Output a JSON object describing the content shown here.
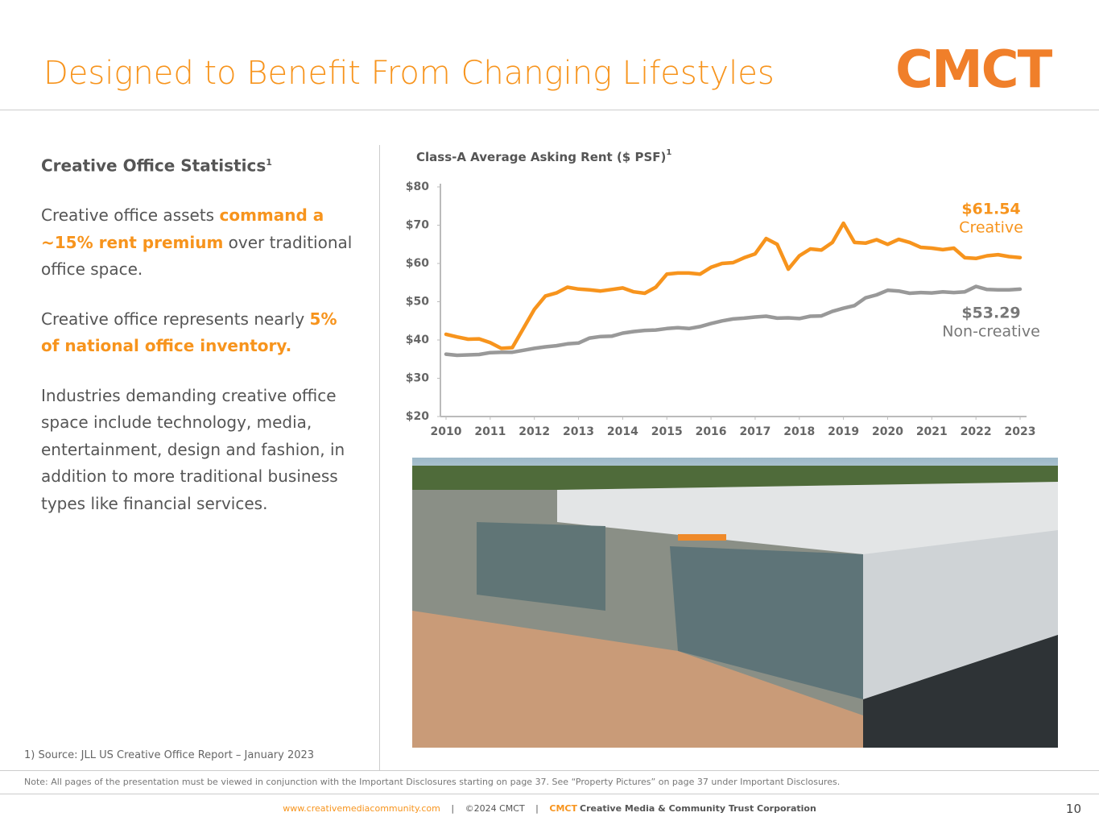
{
  "header": {
    "title": "Designed to Benefit From Changing Lifestyles",
    "logo": "CMCT"
  },
  "left": {
    "heading": "Creative Office Statistics",
    "heading_note": "1",
    "paragraphs": [
      [
        {
          "text": "Creative office assets "
        },
        {
          "text": "command a ~15% rent premium",
          "emphasis": true
        },
        {
          "text": " over traditional office space."
        }
      ],
      [
        {
          "text": "Creative office represents nearly "
        },
        {
          "text": "5% of national office inventory.",
          "emphasis": true
        }
      ],
      [
        {
          "text": "Industries demanding creative office space include technology, media, entertainment, design and fashion, in addition to more traditional business types like financial services."
        }
      ]
    ],
    "footnote": "1) Source: JLL US Creative Office Report – January 2023"
  },
  "chart_data": {
    "type": "line",
    "title": "Class-A Average Asking Rent ($ PSF)",
    "title_note": "1",
    "x": [
      2010,
      2010.25,
      2010.5,
      2010.75,
      2011,
      2011.25,
      2011.5,
      2011.75,
      2012,
      2012.25,
      2012.5,
      2012.75,
      2013,
      2013.25,
      2013.5,
      2013.75,
      2014,
      2014.25,
      2014.5,
      2014.75,
      2015,
      2015.25,
      2015.5,
      2015.75,
      2016,
      2016.25,
      2016.5,
      2016.75,
      2017,
      2017.25,
      2017.5,
      2017.75,
      2018,
      2018.25,
      2018.5,
      2018.75,
      2019,
      2019.25,
      2019.5,
      2019.75,
      2020,
      2020.25,
      2020.5,
      2020.75,
      2021,
      2021.25,
      2021.5,
      2021.75,
      2022,
      2022.25,
      2022.5,
      2022.75,
      2023
    ],
    "xlim": [
      2010,
      2023
    ],
    "xticks": [
      2010,
      2011,
      2012,
      2013,
      2014,
      2015,
      2016,
      2017,
      2018,
      2019,
      2020,
      2021,
      2022,
      2023
    ],
    "ylim": [
      20,
      80
    ],
    "yticks": [
      {
        "value": 20,
        "label": "$20"
      },
      {
        "value": 30,
        "label": "$30"
      },
      {
        "value": 40,
        "label": "$40"
      },
      {
        "value": 50,
        "label": "$50"
      },
      {
        "value": 60,
        "label": "$60"
      },
      {
        "value": 70,
        "label": "$70"
      },
      {
        "value": 80,
        "label": "$80"
      }
    ],
    "series": [
      {
        "name": "Creative",
        "color": "#f7941d",
        "values": [
          41.5,
          40.8,
          40.2,
          40.3,
          39.3,
          37.8,
          38,
          43,
          48,
          51.5,
          52.3,
          53.8,
          53.3,
          53.1,
          52.8,
          53.2,
          53.6,
          52.6,
          52.2,
          53.8,
          57.2,
          57.5,
          57.5,
          57.2,
          59,
          60,
          60.2,
          61.5,
          62.5,
          66.5,
          65,
          58.5,
          62,
          63.8,
          63.5,
          65.5,
          70.5,
          65.5,
          65.3,
          66.2,
          65,
          66.3,
          65.5,
          64.2,
          64,
          63.6,
          64,
          61.5,
          61.3,
          62,
          62.3,
          61.8,
          61.54
        ],
        "value_labels": [
          null,
          null,
          null,
          null,
          null,
          null,
          null,
          null,
          null,
          null,
          null,
          null,
          null,
          null,
          null,
          null,
          null,
          null,
          null,
          null,
          null,
          null,
          null,
          null,
          null,
          null,
          null,
          null,
          null,
          null,
          null,
          null,
          null,
          null,
          null,
          null,
          null,
          null,
          null,
          null,
          null,
          null,
          null,
          null,
          null,
          null,
          null,
          null,
          null,
          null,
          null,
          null,
          "$61.54"
        ]
      },
      {
        "name": "Non-creative",
        "color": "#999999",
        "values": [
          36.3,
          36,
          36.1,
          36.2,
          36.7,
          36.8,
          36.8,
          37.3,
          37.8,
          38.2,
          38.5,
          39,
          39.2,
          40.5,
          40.9,
          41,
          41.8,
          42.2,
          42.5,
          42.6,
          43,
          43.2,
          43,
          43.5,
          44.3,
          45,
          45.5,
          45.7,
          46,
          46.2,
          45.7,
          45.8,
          45.6,
          46.2,
          46.3,
          47.5,
          48.3,
          49,
          51,
          51.8,
          53,
          52.8,
          52.2,
          52.4,
          52.3,
          52.6,
          52.4,
          52.6,
          54,
          53.2,
          53.1,
          53.1,
          53.29
        ],
        "value_labels": [
          null,
          null,
          null,
          null,
          null,
          null,
          null,
          null,
          null,
          null,
          null,
          null,
          null,
          null,
          null,
          null,
          null,
          null,
          null,
          null,
          null,
          null,
          null,
          null,
          null,
          null,
          null,
          null,
          null,
          null,
          null,
          null,
          null,
          null,
          null,
          null,
          null,
          null,
          null,
          null,
          null,
          null,
          null,
          null,
          null,
          null,
          null,
          null,
          null,
          null,
          null,
          null,
          "$53.29"
        ]
      }
    ]
  },
  "note": "Note: All pages of the presentation must be viewed in conjunction with the Important Disclosures starting on page 37. See “Property Pictures” on page 37 under Important Disclosures.",
  "footer": {
    "website": "www.creativemediacommunity.com",
    "separator": "|",
    "copyright": "©2024 CMCT",
    "brand": "CMCT",
    "company": "Creative Media & Community Trust Corporation",
    "page": "10"
  }
}
